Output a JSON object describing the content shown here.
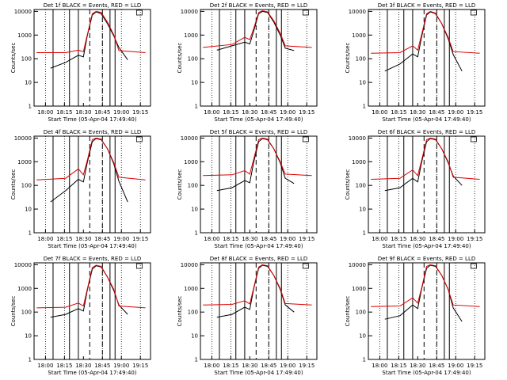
{
  "common": {
    "ylabel": "Counts/sec",
    "xlabel": "Start Time (05-Apr-04 17:49:40)",
    "xticks": [
      "18:00",
      "18:15",
      "18:30",
      "18:45",
      "19:00",
      "19:15"
    ],
    "yticks": [
      "1",
      "10",
      "100",
      "1000",
      "10000"
    ],
    "colors": {
      "events": "#000000",
      "lld": "#dd0000"
    }
  },
  "chart_data": [
    {
      "type": "line",
      "title": "Det 1f BLACK = Events, RED = LLD",
      "xlabel": "Start Time (05-Apr-04 17:49:40)",
      "ylabel": "Counts/sec",
      "xlim": [
        "17:51",
        "19:23"
      ],
      "ylim": [
        1,
        12000
      ],
      "yscale": "log",
      "series": [
        {
          "name": "Events",
          "x": [
            "18:04",
            "18:16",
            "18:26",
            "18:30",
            "18:33",
            "18:37",
            "18:40",
            "18:44",
            "18:49",
            "18:54",
            "18:58",
            "19:05"
          ],
          "values": [
            40,
            70,
            140,
            120,
            900,
            7000,
            9500,
            8000,
            3000,
            900,
            300,
            90
          ]
        },
        {
          "name": "LLD",
          "x": [
            "17:53",
            "18:16",
            "18:26",
            "18:30",
            "18:33",
            "18:37",
            "18:40",
            "18:44",
            "18:49",
            "18:54",
            "18:58",
            "19:19"
          ],
          "values": [
            180,
            180,
            230,
            200,
            1000,
            8000,
            10000,
            9000,
            3500,
            1000,
            220,
            180
          ]
        }
      ],
      "vlines_solid": [
        "18:06",
        "18:19",
        "18:26",
        "18:51",
        "18:55"
      ],
      "vlines_dashed": [
        "18:35",
        "18:45"
      ],
      "vlines_dotted": [
        "18:00",
        "18:15",
        "18:45",
        "19:00",
        "19:15"
      ]
    },
    {
      "type": "line",
      "title": "Det 2f BLACK = Events, RED = LLD",
      "xlabel": "Start Time (05-Apr-04 17:49:40)",
      "ylabel": "Counts/sec",
      "xlim": [
        "17:51",
        "19:23"
      ],
      "ylim": [
        1,
        12000
      ],
      "yscale": "log",
      "series": [
        {
          "name": "Events",
          "x": [
            "18:04",
            "18:16",
            "18:26",
            "18:30",
            "18:33",
            "18:37",
            "18:40",
            "18:44",
            "18:49",
            "18:54",
            "18:58",
            "19:05"
          ],
          "values": [
            230,
            350,
            500,
            420,
            1400,
            8000,
            10000,
            9000,
            3500,
            1000,
            280,
            220
          ]
        },
        {
          "name": "LLD",
          "x": [
            "17:53",
            "18:16",
            "18:26",
            "18:30",
            "18:33",
            "18:37",
            "18:40",
            "18:44",
            "18:49",
            "18:54",
            "18:58",
            "19:19"
          ],
          "values": [
            300,
            400,
            800,
            650,
            1800,
            9000,
            10500,
            9500,
            4000,
            1200,
            350,
            300
          ]
        }
      ],
      "vlines_solid": [
        "18:06",
        "18:19",
        "18:26",
        "18:51",
        "18:55"
      ],
      "vlines_dashed": [
        "18:35",
        "18:45"
      ],
      "vlines_dotted": [
        "18:00",
        "18:15",
        "18:45",
        "19:00",
        "19:15"
      ]
    },
    {
      "type": "line",
      "title": "Det 3f BLACK = Events, RED = LLD",
      "xlabel": "Start Time (05-Apr-04 17:49:40)",
      "ylabel": "Counts/sec",
      "xlim": [
        "17:51",
        "19:23"
      ],
      "ylim": [
        1,
        12000
      ],
      "yscale": "log",
      "series": [
        {
          "name": "Events",
          "x": [
            "18:04",
            "18:16",
            "18:26",
            "18:30",
            "18:33",
            "18:37",
            "18:40",
            "18:44",
            "18:49",
            "18:54",
            "18:58",
            "19:05"
          ],
          "values": [
            30,
            60,
            160,
            120,
            800,
            7000,
            9500,
            8000,
            3000,
            700,
            150,
            30
          ]
        },
        {
          "name": "LLD",
          "x": [
            "17:53",
            "18:16",
            "18:26",
            "18:30",
            "18:33",
            "18:37",
            "18:40",
            "18:44",
            "18:49",
            "18:54",
            "18:58",
            "19:19"
          ],
          "values": [
            170,
            180,
            350,
            230,
            1000,
            8000,
            10000,
            8500,
            3000,
            800,
            200,
            170
          ]
        }
      ],
      "vlines_solid": [
        "18:06",
        "18:19",
        "18:26",
        "18:51",
        "18:55"
      ],
      "vlines_dashed": [
        "18:35",
        "18:45"
      ],
      "vlines_dotted": [
        "18:00",
        "18:15",
        "18:45",
        "19:00",
        "19:15"
      ]
    },
    {
      "type": "line",
      "title": "Det 4f BLACK = Events, RED = LLD",
      "xlabel": "Start Time (05-Apr-04 17:49:40)",
      "ylabel": "Counts/sec",
      "xlim": [
        "17:51",
        "19:23"
      ],
      "ylim": [
        1,
        12000
      ],
      "yscale": "log",
      "series": [
        {
          "name": "Events",
          "x": [
            "18:04",
            "18:16",
            "18:26",
            "18:30",
            "18:33",
            "18:37",
            "18:40",
            "18:44",
            "18:49",
            "18:54",
            "18:58",
            "19:05"
          ],
          "values": [
            20,
            60,
            180,
            140,
            900,
            7000,
            9500,
            8500,
            3500,
            800,
            150,
            20
          ]
        },
        {
          "name": "LLD",
          "x": [
            "17:53",
            "18:16",
            "18:26",
            "18:30",
            "18:33",
            "18:37",
            "18:40",
            "18:44",
            "18:49",
            "18:54",
            "18:58",
            "19:19"
          ],
          "values": [
            170,
            200,
            500,
            280,
            1100,
            8500,
            10000,
            9000,
            3500,
            900,
            220,
            170
          ]
        }
      ],
      "vlines_solid": [
        "18:06",
        "18:19",
        "18:26",
        "18:51",
        "18:55"
      ],
      "vlines_dashed": [
        "18:35",
        "18:45"
      ],
      "vlines_dotted": [
        "18:00",
        "18:15",
        "18:45",
        "19:00",
        "19:15"
      ]
    },
    {
      "type": "line",
      "title": "Det 5f BLACK = Events, RED = LLD",
      "xlabel": "Start Time (05-Apr-04 17:49:40)",
      "ylabel": "Counts/sec",
      "xlim": [
        "17:51",
        "19:23"
      ],
      "ylim": [
        1,
        12000
      ],
      "yscale": "log",
      "series": [
        {
          "name": "Events",
          "x": [
            "18:04",
            "18:16",
            "18:26",
            "18:30",
            "18:33",
            "18:37",
            "18:40",
            "18:44",
            "18:49",
            "18:54",
            "18:58",
            "19:05"
          ],
          "values": [
            60,
            80,
            160,
            130,
            900,
            7000,
            9500,
            8500,
            3500,
            900,
            200,
            120
          ]
        },
        {
          "name": "LLD",
          "x": [
            "17:53",
            "18:16",
            "18:26",
            "18:30",
            "18:33",
            "18:37",
            "18:40",
            "18:44",
            "18:49",
            "18:54",
            "18:58",
            "19:19"
          ],
          "values": [
            260,
            280,
            420,
            300,
            1200,
            8500,
            10000,
            9000,
            3500,
            1000,
            300,
            260
          ]
        }
      ],
      "vlines_solid": [
        "18:06",
        "18:19",
        "18:26",
        "18:51",
        "18:55"
      ],
      "vlines_dashed": [
        "18:35",
        "18:45"
      ],
      "vlines_dotted": [
        "18:00",
        "18:15",
        "18:45",
        "19:00",
        "19:15"
      ]
    },
    {
      "type": "line",
      "title": "Det 6f BLACK = Events, RED = LLD",
      "xlabel": "Start Time (05-Apr-04 17:49:40)",
      "ylabel": "Counts/sec",
      "xlim": [
        "17:51",
        "19:23"
      ],
      "ylim": [
        1,
        12000
      ],
      "yscale": "log",
      "series": [
        {
          "name": "Events",
          "x": [
            "18:04",
            "18:16",
            "18:26",
            "18:30",
            "18:33",
            "18:37",
            "18:40",
            "18:44",
            "18:49",
            "18:54",
            "18:58",
            "19:05"
          ],
          "values": [
            60,
            80,
            200,
            140,
            900,
            7000,
            9500,
            8500,
            3500,
            900,
            250,
            100
          ]
        },
        {
          "name": "LLD",
          "x": [
            "17:53",
            "18:16",
            "18:26",
            "18:30",
            "18:33",
            "18:37",
            "18:40",
            "18:44",
            "18:49",
            "18:54",
            "18:58",
            "19:19"
          ],
          "values": [
            180,
            200,
            450,
            260,
            1100,
            8500,
            10000,
            9000,
            3500,
            1000,
            220,
            180
          ]
        }
      ],
      "vlines_solid": [
        "18:06",
        "18:19",
        "18:26",
        "18:51",
        "18:55"
      ],
      "vlines_dashed": [
        "18:35",
        "18:45"
      ],
      "vlines_dotted": [
        "18:00",
        "18:15",
        "18:45",
        "19:00",
        "19:15"
      ]
    },
    {
      "type": "line",
      "title": "Det 7f BLACK = Events, RED = LLD",
      "xlabel": "Start Time (05-Apr-04 17:49:40)",
      "ylabel": "Counts/sec",
      "xlim": [
        "17:51",
        "19:23"
      ],
      "ylim": [
        1,
        12000
      ],
      "yscale": "log",
      "series": [
        {
          "name": "Events",
          "x": [
            "18:04",
            "18:16",
            "18:26",
            "18:30",
            "18:33",
            "18:37",
            "18:40",
            "18:44",
            "18:49",
            "18:54",
            "18:58",
            "19:05"
          ],
          "values": [
            60,
            80,
            140,
            110,
            800,
            6500,
            9000,
            8000,
            3000,
            800,
            200,
            80
          ]
        },
        {
          "name": "LLD",
          "x": [
            "17:53",
            "18:16",
            "18:26",
            "18:30",
            "18:33",
            "18:37",
            "18:40",
            "18:44",
            "18:49",
            "18:54",
            "18:58",
            "19:19"
          ],
          "values": [
            150,
            160,
            240,
            180,
            900,
            7500,
            9500,
            8500,
            3000,
            900,
            180,
            150
          ]
        }
      ],
      "vlines_solid": [
        "18:06",
        "18:19",
        "18:26",
        "18:51",
        "18:55"
      ],
      "vlines_dashed": [
        "18:35",
        "18:45"
      ],
      "vlines_dotted": [
        "18:00",
        "18:15",
        "18:45",
        "19:00",
        "19:15"
      ]
    },
    {
      "type": "line",
      "title": "Det 8f BLACK = Events, RED = LLD",
      "xlabel": "Start Time (05-Apr-04 17:49:40)",
      "ylabel": "Counts/sec",
      "xlim": [
        "17:51",
        "19:23"
      ],
      "ylim": [
        1,
        12000
      ],
      "yscale": "log",
      "series": [
        {
          "name": "Events",
          "x": [
            "18:04",
            "18:16",
            "18:26",
            "18:30",
            "18:33",
            "18:37",
            "18:40",
            "18:44",
            "18:49",
            "18:54",
            "18:58",
            "19:05"
          ],
          "values": [
            60,
            80,
            160,
            130,
            900,
            7000,
            9500,
            8500,
            3500,
            900,
            200,
            100
          ]
        },
        {
          "name": "LLD",
          "x": [
            "17:53",
            "18:16",
            "18:26",
            "18:30",
            "18:33",
            "18:37",
            "18:40",
            "18:44",
            "18:49",
            "18:54",
            "18:58",
            "19:19"
          ],
          "values": [
            200,
            210,
            300,
            220,
            1000,
            8000,
            10000,
            9000,
            3500,
            1000,
            230,
            200
          ]
        }
      ],
      "vlines_solid": [
        "18:06",
        "18:19",
        "18:26",
        "18:51",
        "18:55"
      ],
      "vlines_dashed": [
        "18:35",
        "18:45"
      ],
      "vlines_dotted": [
        "18:00",
        "18:15",
        "18:45",
        "19:00",
        "19:15"
      ]
    },
    {
      "type": "line",
      "title": "Det 9f BLACK = Events, RED = LLD",
      "xlabel": "Start Time (05-Apr-04 17:49:40)",
      "ylabel": "Counts/sec",
      "xlim": [
        "17:51",
        "19:23"
      ],
      "ylim": [
        1,
        12000
      ],
      "yscale": "log",
      "series": [
        {
          "name": "Events",
          "x": [
            "18:04",
            "18:16",
            "18:26",
            "18:30",
            "18:33",
            "18:37",
            "18:40",
            "18:44",
            "18:49",
            "18:54",
            "18:58",
            "19:05"
          ],
          "values": [
            50,
            70,
            200,
            140,
            900,
            7000,
            9500,
            8500,
            3500,
            900,
            150,
            40
          ]
        },
        {
          "name": "LLD",
          "x": [
            "17:53",
            "18:16",
            "18:26",
            "18:30",
            "18:33",
            "18:37",
            "18:40",
            "18:44",
            "18:49",
            "18:54",
            "18:58",
            "19:19"
          ],
          "values": [
            170,
            180,
            400,
            240,
            1000,
            8500,
            10000,
            9000,
            3500,
            900,
            200,
            170
          ]
        }
      ],
      "vlines_solid": [
        "18:06",
        "18:19",
        "18:26",
        "18:51",
        "18:55"
      ],
      "vlines_dashed": [
        "18:35",
        "18:45"
      ],
      "vlines_dotted": [
        "18:00",
        "18:15",
        "18:45",
        "19:00",
        "19:15"
      ]
    }
  ]
}
